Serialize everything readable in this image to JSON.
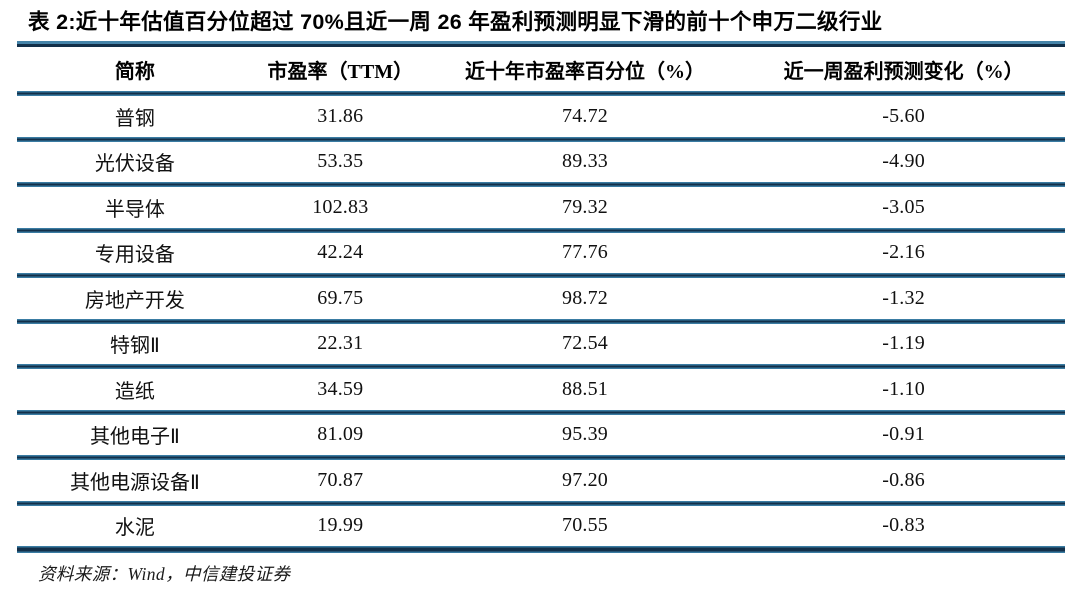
{
  "table": {
    "title": "表 2:近十年估值百分位超过 70%且近一周 26 年盈利预测明显下滑的前十个申万二级行业",
    "columns": [
      "简称",
      "市盈率（TTM）",
      "近十年市盈率百分位（%）",
      "近一周盈利预测变化（%）"
    ],
    "rows": [
      {
        "name": "普钢",
        "pe": "31.86",
        "pctl": "74.72",
        "chg": "-5.60"
      },
      {
        "name": "光伏设备",
        "pe": "53.35",
        "pctl": "89.33",
        "chg": "-4.90"
      },
      {
        "name": "半导体",
        "pe": "102.83",
        "pctl": "79.32",
        "chg": "-3.05"
      },
      {
        "name": "专用设备",
        "pe": "42.24",
        "pctl": "77.76",
        "chg": "-2.16"
      },
      {
        "name": "房地产开发",
        "pe": "69.75",
        "pctl": "98.72",
        "chg": "-1.32"
      },
      {
        "name": "特钢Ⅱ",
        "pe": "22.31",
        "pctl": "72.54",
        "chg": "-1.19"
      },
      {
        "name": "造纸",
        "pe": "34.59",
        "pctl": "88.51",
        "chg": "-1.10"
      },
      {
        "name": "其他电子Ⅱ",
        "pe": "81.09",
        "pctl": "95.39",
        "chg": "-0.91"
      },
      {
        "name": "其他电源设备Ⅱ",
        "pe": "70.87",
        "pctl": "97.20",
        "chg": "-0.86"
      },
      {
        "name": "水泥",
        "pe": "19.99",
        "pctl": "70.55",
        "chg": "-0.83"
      }
    ],
    "source": "资料来源：Wind，中信建投证券"
  },
  "colors": {
    "rule_blue": "#3a7ca3",
    "rule_dark": "#13304a",
    "title_text": "#000000",
    "body_text": "#111111",
    "background": "#ffffff"
  }
}
